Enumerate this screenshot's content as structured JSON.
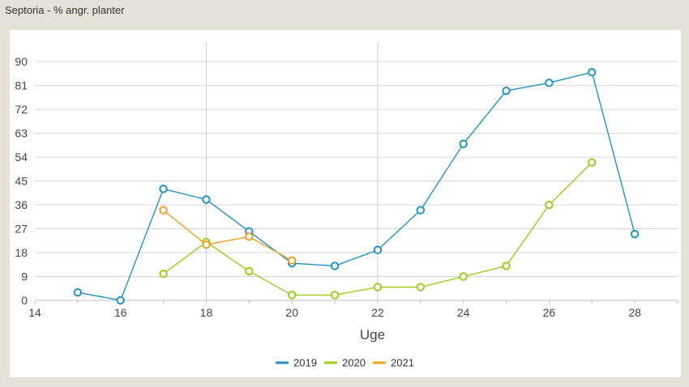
{
  "header": {
    "title": "Septoria - % angr. planter"
  },
  "chart_data": {
    "type": "line",
    "title": "Septoria - % angr. planter",
    "xlabel": "Uge",
    "ylabel": "",
    "xlim": [
      14,
      29
    ],
    "ylim": [
      0,
      94
    ],
    "xticks": [
      14,
      16,
      18,
      20,
      22,
      24,
      26,
      28
    ],
    "yticks": [
      0,
      9,
      18,
      27,
      36,
      45,
      54,
      63,
      72,
      81,
      90
    ],
    "x_major_grid": [
      18,
      22
    ],
    "y_grid": true,
    "legend_position": "bottom",
    "series": [
      {
        "name": "2019",
        "color": "#1f93c4",
        "points": [
          [
            15,
            3
          ],
          [
            16,
            0
          ],
          [
            17,
            42
          ],
          [
            18,
            38
          ],
          [
            19,
            26
          ],
          [
            20,
            14
          ],
          [
            21,
            13
          ],
          [
            22,
            19
          ],
          [
            23,
            34
          ],
          [
            24,
            59
          ],
          [
            25,
            79
          ],
          [
            26,
            82
          ],
          [
            27,
            86
          ],
          [
            28,
            25
          ]
        ]
      },
      {
        "name": "2020",
        "color": "#9ccb1b",
        "points": [
          [
            17,
            10
          ],
          [
            18,
            22
          ],
          [
            19,
            11
          ],
          [
            20,
            2
          ],
          [
            21,
            2
          ],
          [
            22,
            5
          ],
          [
            23,
            5
          ],
          [
            24,
            9
          ],
          [
            25,
            13
          ],
          [
            26,
            36
          ],
          [
            27,
            52
          ]
        ]
      },
      {
        "name": "2021",
        "color": "#f0a01e",
        "points": [
          [
            17,
            34
          ],
          [
            18,
            21
          ],
          [
            19,
            24
          ],
          [
            20,
            15
          ]
        ]
      }
    ]
  }
}
